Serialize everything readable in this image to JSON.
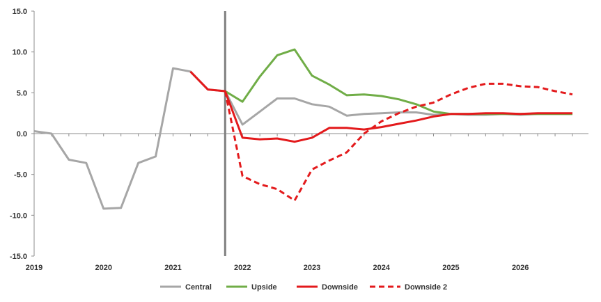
{
  "chart_data": {
    "type": "line",
    "title": "",
    "xlabel": "",
    "ylabel": "",
    "ylim": [
      -15,
      15
    ],
    "yticks": [
      15,
      10,
      5,
      0,
      -5,
      -10,
      -15
    ],
    "ytick_labels": [
      "15.0",
      "10.0",
      "5.0",
      "0.0",
      "-5.0",
      "-10.0",
      "-15.0"
    ],
    "xlim": [
      2019,
      2026.75
    ],
    "xticks": [
      2019,
      2020,
      2021,
      2022,
      2023,
      2024,
      2025,
      2026
    ],
    "xtick_labels": [
      "2019",
      "2020",
      "2021",
      "2022",
      "2023",
      "2024",
      "2025",
      "2026"
    ],
    "grid": false,
    "legend_position": "bottom",
    "forecast_marker": {
      "x": 2021.75,
      "color": "#808080"
    },
    "series": [
      {
        "name": "Central",
        "color": "#A6A6A6",
        "dash": "solid",
        "x": [
          2019,
          2019.25,
          2019.5,
          2019.75,
          2020,
          2020.25,
          2020.5,
          2020.75,
          2021,
          2021.25,
          2021.5,
          2021.75,
          2022,
          2022.25,
          2022.5,
          2022.75,
          2023,
          2023.25,
          2023.5,
          2023.75,
          2024,
          2024.25,
          2024.5,
          2024.75,
          2025,
          2025.25,
          2025.5,
          2025.75,
          2026,
          2026.25,
          2026.5,
          2026.75
        ],
        "values": [
          0.3,
          0.0,
          -3.2,
          -3.6,
          -9.2,
          -9.1,
          -3.6,
          -2.8,
          8.0,
          7.6,
          5.4,
          5.2,
          1.1,
          2.7,
          4.3,
          4.3,
          3.6,
          3.3,
          2.2,
          2.4,
          2.5,
          2.6,
          2.6,
          2.3,
          2.4,
          2.3,
          2.3,
          2.4,
          2.3,
          2.4,
          2.4,
          2.4
        ]
      },
      {
        "name": "Upside",
        "color": "#70AD47",
        "dash": "solid",
        "x": [
          2021.75,
          2022,
          2022.25,
          2022.5,
          2022.75,
          2023,
          2023.25,
          2023.5,
          2023.75,
          2024,
          2024.25,
          2024.5,
          2024.75,
          2025,
          2025.25,
          2025.5,
          2025.75,
          2026,
          2026.25,
          2026.5,
          2026.75
        ],
        "values": [
          5.2,
          3.9,
          7.0,
          9.6,
          10.3,
          7.1,
          6.0,
          4.7,
          4.8,
          4.6,
          4.2,
          3.6,
          2.7,
          2.4,
          2.4,
          2.4,
          2.4,
          2.4,
          2.4,
          2.4,
          2.4
        ]
      },
      {
        "name": "Downside",
        "color": "#E31A1C",
        "dash": "solid",
        "x": [
          2021.25,
          2021.5,
          2021.75,
          2022,
          2022.25,
          2022.5,
          2022.75,
          2023,
          2023.25,
          2023.5,
          2023.75,
          2024,
          2024.25,
          2024.5,
          2024.75,
          2025,
          2025.25,
          2025.5,
          2025.75,
          2026,
          2026.25,
          2026.5,
          2026.75
        ],
        "values": [
          7.6,
          5.4,
          5.2,
          -0.5,
          -0.7,
          -0.6,
          -1.0,
          -0.5,
          0.7,
          0.7,
          0.5,
          0.8,
          1.2,
          1.6,
          2.1,
          2.4,
          2.4,
          2.5,
          2.5,
          2.4,
          2.5,
          2.5,
          2.5
        ]
      },
      {
        "name": "Downside 2",
        "color": "#E31A1C",
        "dash": "dashed",
        "x": [
          2021.75,
          2022,
          2022.25,
          2022.5,
          2022.75,
          2023,
          2023.25,
          2023.5,
          2023.75,
          2024,
          2024.25,
          2024.5,
          2024.75,
          2025,
          2025.25,
          2025.5,
          2025.75,
          2026,
          2026.25,
          2026.5,
          2026.75
        ],
        "values": [
          5.2,
          -5.2,
          -6.2,
          -6.8,
          -8.2,
          -4.4,
          -3.3,
          -2.3,
          0.0,
          1.5,
          2.5,
          3.3,
          3.8,
          4.8,
          5.6,
          6.1,
          6.1,
          5.8,
          5.7,
          5.2,
          4.8
        ]
      }
    ]
  }
}
